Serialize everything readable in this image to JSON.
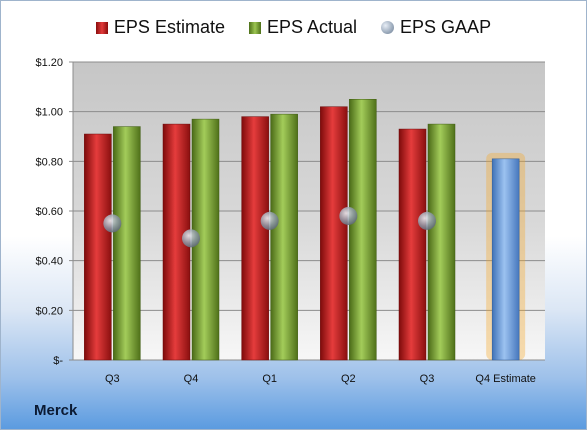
{
  "chart_data": {
    "type": "bar",
    "categories": [
      "Q3",
      "Q4",
      "Q1",
      "Q2",
      "Q3",
      "Q4 Estimate"
    ],
    "series": [
      {
        "name": "EPS Estimate",
        "kind": "bar",
        "color": "#c62828",
        "values": [
          0.91,
          0.95,
          0.98,
          1.02,
          0.93,
          null
        ]
      },
      {
        "name": "EPS Actual",
        "kind": "bar",
        "color": "#7ea73a",
        "values": [
          0.94,
          0.97,
          0.99,
          1.05,
          0.95,
          null
        ]
      },
      {
        "name": "EPS GAAP",
        "kind": "marker",
        "color": "#9aa9bb",
        "values": [
          0.55,
          0.49,
          0.56,
          0.58,
          0.56,
          null
        ]
      },
      {
        "name": "",
        "kind": "bar",
        "color": "#6a9ee0",
        "highlight": "#f5a623",
        "values": [
          null,
          null,
          null,
          null,
          null,
          0.81
        ]
      }
    ],
    "ylim": [
      0,
      1.2
    ],
    "yticks": [
      "$-",
      "$0.20",
      "$0.40",
      "$0.60",
      "$0.80",
      "$1.00",
      "$1.20"
    ],
    "ytick_values": [
      0,
      0.2,
      0.4,
      0.6,
      0.8,
      1.0,
      1.2
    ],
    "grid": true,
    "legend": "top",
    "xlabel": "",
    "ylabel": ""
  },
  "legend": {
    "estimate": "EPS Estimate",
    "actual": "EPS Actual",
    "gaap": "EPS GAAP"
  },
  "footer": {
    "company": "Merck"
  }
}
